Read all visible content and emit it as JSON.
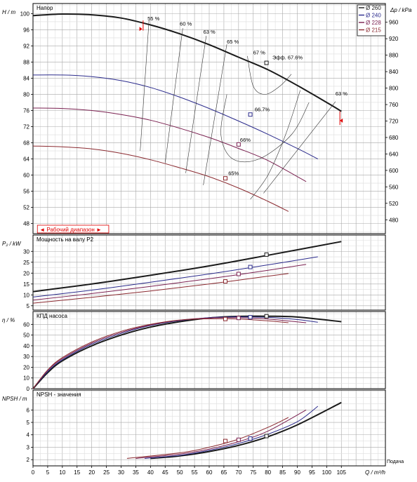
{
  "colors": {
    "d260": "#1a1a1a",
    "d240": "#2b2b8c",
    "d228": "#7a2050",
    "d215": "#8b2a30",
    "grid": "#bdbdbd",
    "red": "#e00000"
  },
  "chart_data": {
    "type": "line",
    "x_axis": {
      "label": "Q / m³/h",
      "ticks": [
        0,
        5,
        10,
        15,
        20,
        25,
        30,
        35,
        40,
        45,
        50,
        55,
        60,
        65,
        70,
        75,
        80,
        85,
        90,
        95,
        100,
        105
      ],
      "range": [
        0,
        120
      ]
    },
    "footer_label": "Подача",
    "operating_range_label": "◄ Рабочий диапазон ►",
    "legend": [
      {
        "label": "Ø 260",
        "color": "#1a1a1a"
      },
      {
        "label": "Ø 240",
        "color": "#2b2b8c"
      },
      {
        "label": "Ø 228",
        "color": "#7a2050"
      },
      {
        "label": "Ø 215",
        "color": "#8b2a30"
      }
    ],
    "panels": [
      {
        "id": "head",
        "title": "Напор",
        "ylabel": "H / m",
        "y2label": "Δp / kPa",
        "ylim": [
          45.5,
          102.5
        ],
        "yticks": [
          48,
          52,
          56,
          60,
          64,
          68,
          72,
          76,
          80,
          84,
          88,
          92,
          96,
          100
        ],
        "y2ticks": [
          480,
          520,
          560,
          600,
          640,
          680,
          720,
          760,
          800,
          840,
          880,
          920,
          960
        ],
        "series": [
          {
            "name": "Ø 260",
            "x": [
              0,
              10,
              20,
              30,
              40,
              50,
              60,
              70,
              80,
              90,
              100,
              105
            ],
            "y": [
              99.5,
              99.9,
              99.7,
              98.9,
              97.2,
              95.0,
              92.3,
              89.2,
              86.1,
              82.2,
              78.0,
              75.8
            ]
          },
          {
            "name": "Ø 240",
            "x": [
              0,
              10,
              20,
              30,
              40,
              50,
              60,
              70,
              80,
              90,
              97
            ],
            "y": [
              84.8,
              84.8,
              84.4,
              83.4,
              81.7,
              79.3,
              76.5,
              73.4,
              70.1,
              66.6,
              64.0
            ]
          },
          {
            "name": "Ø 228",
            "x": [
              0,
              10,
              20,
              30,
              40,
              50,
              60,
              70,
              80,
              93
            ],
            "y": [
              76.6,
              76.5,
              76.0,
              75.0,
              73.6,
              71.6,
              69.3,
              66.6,
              63.6,
              58.4
            ]
          },
          {
            "name": "Ø 215",
            "x": [
              0,
              10,
              20,
              30,
              40,
              50,
              60,
              70,
              80,
              87
            ],
            "y": [
              67.2,
              67.0,
              66.5,
              65.4,
              63.8,
              61.8,
              59.6,
              56.8,
              53.5,
              51.0
            ]
          }
        ],
        "efficiency_labels": [
          {
            "text": "55 %",
            "x": 39,
            "y": 98.3
          },
          {
            "text": "60 %",
            "x": 50,
            "y": 97.0
          },
          {
            "text": "63 %",
            "x": 58,
            "y": 95.0
          },
          {
            "text": "65 %",
            "x": 66,
            "y": 92.6
          },
          {
            "text": "67 %",
            "x": 75,
            "y": 89.9
          },
          {
            "text": "63 %",
            "x": 103,
            "y": 79.7
          },
          {
            "text": "Эфф.  67.6%",
            "x": 81.5,
            "y": 88.7
          },
          {
            "text": "66.7%",
            "x": 75.5,
            "y": 75.8
          },
          {
            "text": "66%",
            "x": 70.5,
            "y": 68.3
          },
          {
            "text": "65%",
            "x": 66.5,
            "y": 60.0
          }
        ],
        "markers": [
          {
            "x": 79.5,
            "y": 87.8
          },
          {
            "x": 74,
            "y": 75.0
          },
          {
            "x": 70,
            "y": 67.6
          },
          {
            "x": 65.5,
            "y": 59.2
          }
        ]
      },
      {
        "id": "power",
        "title": "Мощность на валу P2",
        "ylabel": "P₂ / kW",
        "ylim": [
          3,
          37.5
        ],
        "yticks": [
          5,
          10,
          15,
          20,
          25,
          30
        ],
        "series": [
          {
            "name": "Ø 260",
            "x": [
              0,
              20,
              40,
              60,
              80,
              105
            ],
            "y": [
              11.5,
              15.0,
              19.0,
              23.3,
              28.2,
              34.5
            ]
          },
          {
            "name": "Ø 240",
            "x": [
              0,
              20,
              40,
              60,
              80,
              97
            ],
            "y": [
              9.0,
              12.2,
              15.8,
              19.6,
              23.8,
              27.5
            ]
          },
          {
            "name": "Ø 228",
            "x": [
              0,
              20,
              40,
              60,
              80,
              93
            ],
            "y": [
              7.6,
              10.6,
              13.9,
              17.4,
              21.3,
              24.0
            ]
          },
          {
            "name": "Ø 215",
            "x": [
              0,
              20,
              40,
              60,
              80,
              87
            ],
            "y": [
              6.2,
              8.9,
              11.8,
              15.0,
              18.6,
              19.8
            ]
          }
        ],
        "markers": [
          {
            "x": 79.5,
            "y": 28.5
          },
          {
            "x": 74,
            "y": 22.8
          },
          {
            "x": 70,
            "y": 19.6
          },
          {
            "x": 65.5,
            "y": 16.2
          }
        ]
      },
      {
        "id": "eff",
        "title": "КПД насоса",
        "ylabel": "η / %",
        "ylim": [
          0,
          72
        ],
        "yticks": [
          0,
          10,
          20,
          30,
          40,
          50,
          60
        ],
        "series": [
          {
            "name": "Ø 260",
            "x": [
              0,
              5,
              10,
              20,
              30,
              40,
              50,
              60,
              70,
              80,
              90,
              105
            ],
            "y": [
              0,
              15,
              26,
              40,
              50,
              57.5,
              62.5,
              66.0,
              67.5,
              67.6,
              66.8,
              62.5
            ]
          },
          {
            "name": "Ø 240",
            "x": [
              0,
              5,
              10,
              20,
              30,
              40,
              50,
              60,
              70,
              80,
              90,
              97
            ],
            "y": [
              0,
              16,
              27,
              41.5,
              51.5,
              59.0,
              63.5,
              66.3,
              67.0,
              66.5,
              64.5,
              62.0
            ]
          },
          {
            "name": "Ø 228",
            "x": [
              0,
              5,
              10,
              20,
              30,
              40,
              50,
              60,
              70,
              80,
              93
            ],
            "y": [
              0,
              17,
              28,
              42.5,
              52.5,
              59.5,
              64.0,
              66.0,
              66.2,
              65.0,
              61.5
            ]
          },
          {
            "name": "Ø 215",
            "x": [
              0,
              5,
              10,
              20,
              30,
              40,
              50,
              60,
              70,
              80,
              87
            ],
            "y": [
              0,
              17.5,
              29,
              43.5,
              53.5,
              60.0,
              64.0,
              65.2,
              65.0,
              63.3,
              61.5
            ]
          }
        ],
        "markers": [
          {
            "x": 79.5,
            "y": 67.6
          },
          {
            "x": 74,
            "y": 66.7
          },
          {
            "x": 70,
            "y": 66.0
          },
          {
            "x": 65.5,
            "y": 65.0
          }
        ]
      },
      {
        "id": "npsh",
        "title": "NPSH - значения",
        "ylabel": "NPSH / m",
        "ylim": [
          1.5,
          7.6
        ],
        "yticks": [
          2,
          3,
          4,
          5,
          6
        ],
        "series": [
          {
            "name": "Ø 260",
            "x": [
              40,
              50,
              60,
              70,
              80,
              90,
              105
            ],
            "y": [
              2.1,
              2.3,
              2.65,
              3.15,
              3.85,
              4.8,
              6.6
            ]
          },
          {
            "name": "Ø 240",
            "x": [
              38,
              50,
              60,
              70,
              80,
              90,
              97
            ],
            "y": [
              2.1,
              2.35,
              2.75,
              3.3,
              4.05,
              5.05,
              6.3
            ]
          },
          {
            "name": "Ø 228",
            "x": [
              35,
              50,
              60,
              70,
              80,
              93
            ],
            "y": [
              2.1,
              2.45,
              2.85,
              3.45,
              4.3,
              6.0
            ]
          },
          {
            "name": "Ø 215",
            "x": [
              32,
              50,
              60,
              70,
              80,
              87
            ],
            "y": [
              2.1,
              2.55,
              3.0,
              3.65,
              4.6,
              5.4
            ]
          }
        ],
        "markers": [
          {
            "x": 79.5,
            "y": 3.9
          },
          {
            "x": 74,
            "y": 3.7
          },
          {
            "x": 70,
            "y": 3.6
          },
          {
            "x": 65.5,
            "y": 3.5
          }
        ]
      }
    ]
  }
}
